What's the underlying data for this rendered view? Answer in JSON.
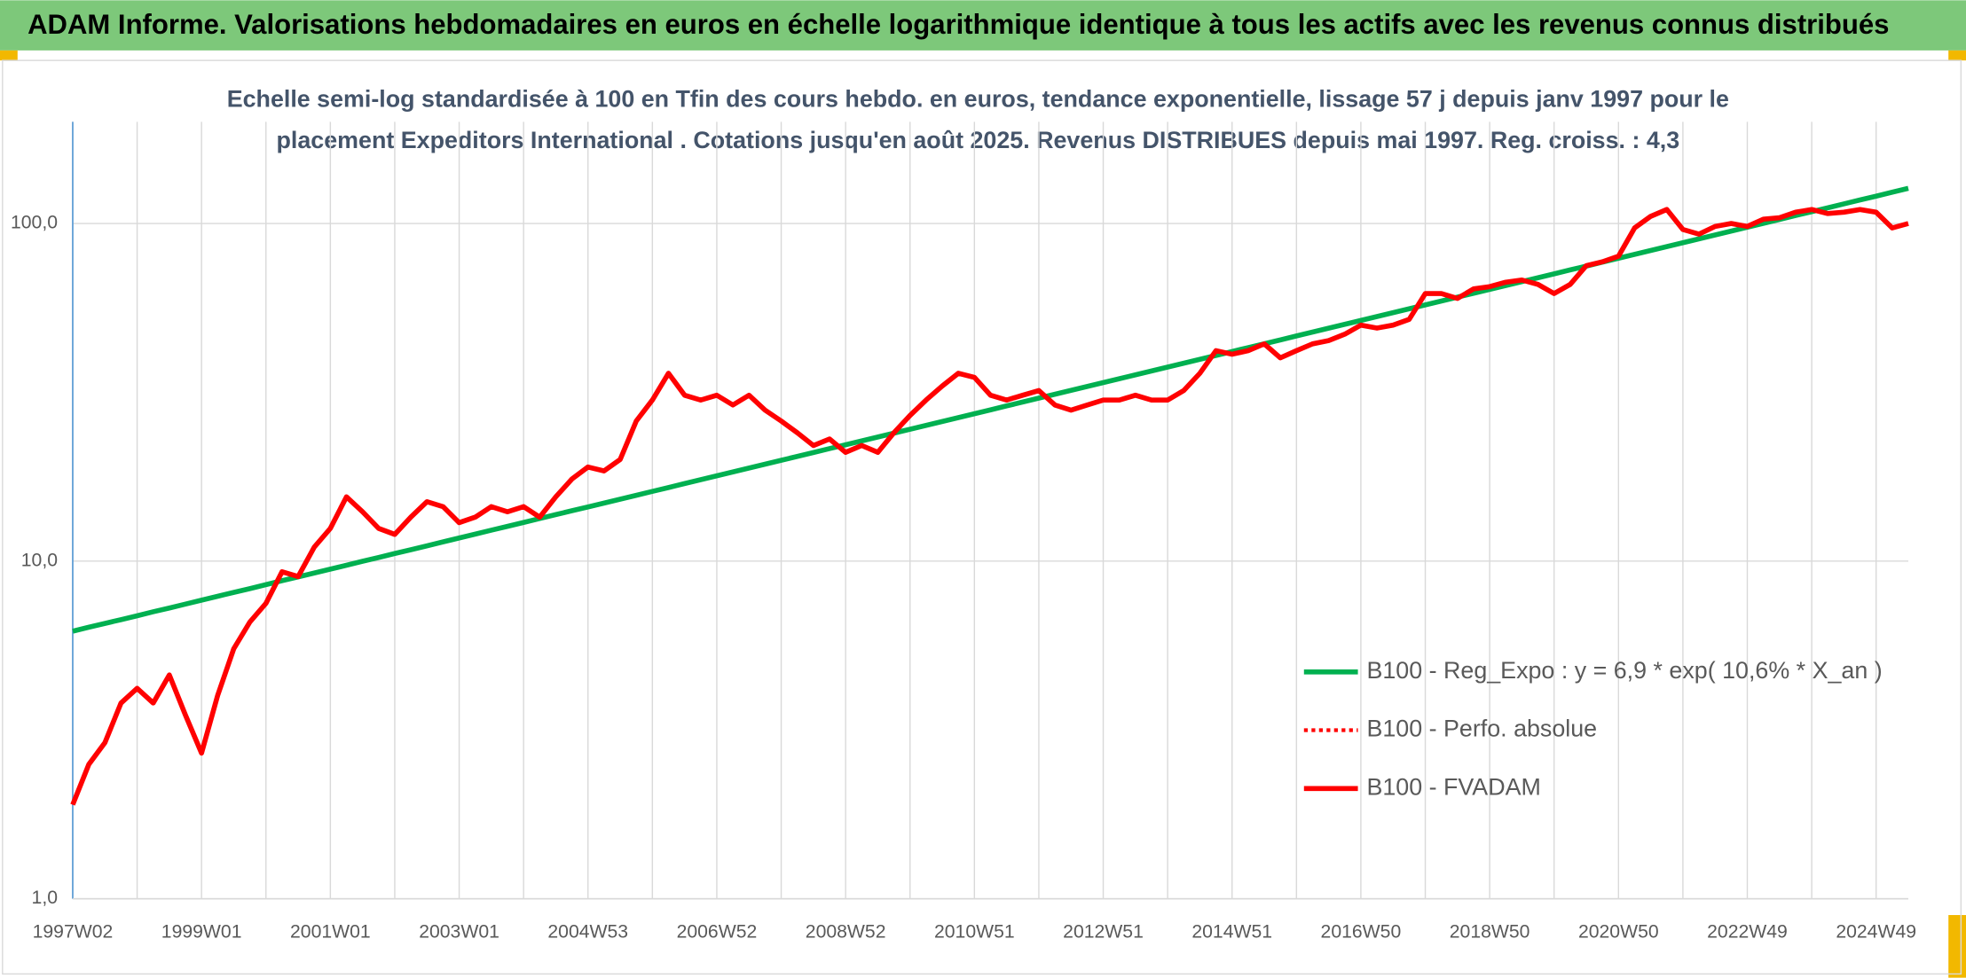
{
  "chart_data": {
    "type": "line",
    "title": "ADAM Informe. Valorisations hebdomadaires en euros en échelle logarithmique identique à tous les actifs avec les revenus connus distribués",
    "subtitle": [
      "Echelle semi-log standardisée à 100 en Tfin des cours hebdo. en euros, tendance exponentielle, lissage 57 j depuis janv 1997 pour le",
      "placement Expeditors International . Cotations jusqu'en août 2025. Revenus DISTRIBUES depuis mai 1997. Reg. croiss. : 4,3"
    ],
    "categories": [
      "1997W02",
      null,
      null,
      null,
      null,
      null,
      null,
      null,
      "1999W01",
      null,
      null,
      null,
      null,
      null,
      null,
      null,
      "2001W01",
      null,
      null,
      null,
      null,
      null,
      null,
      null,
      "2003W01",
      null,
      null,
      null,
      null,
      null,
      null,
      null,
      "2004W53",
      null,
      null,
      null,
      null,
      null,
      null,
      null,
      "2006W52",
      null,
      null,
      null,
      null,
      null,
      null,
      null,
      "2008W52",
      null,
      null,
      null,
      null,
      null,
      null,
      null,
      "2010W51",
      null,
      null,
      null,
      null,
      null,
      null,
      null,
      "2012W51",
      null,
      null,
      null,
      null,
      null,
      null,
      null,
      "2014W51",
      null,
      null,
      null,
      null,
      null,
      null,
      null,
      "2016W50",
      null,
      null,
      null,
      null,
      null,
      null,
      null,
      "2018W50",
      null,
      null,
      null,
      null,
      null,
      null,
      null,
      "2020W50",
      null,
      null,
      null,
      null,
      null,
      null,
      null,
      "2022W49",
      null,
      null,
      null,
      null,
      null,
      null,
      null,
      "2024W49",
      null,
      null
    ],
    "log_scale": true,
    "ylim": [
      1,
      200
    ],
    "yticks": [
      {
        "value": 1,
        "label": "1,0"
      },
      {
        "value": 10,
        "label": "10,0"
      },
      {
        "value": 100,
        "label": "100,0"
      }
    ],
    "grid": true,
    "series": [
      {
        "name": "B100 - Reg_Expo : y = 6,9 * exp( 10,6% *  X_an )",
        "color": "#00b050",
        "dash": "solid",
        "values": [
          6.2,
          6.37,
          6.54,
          6.71,
          6.89,
          7.08,
          7.26,
          7.46,
          7.66,
          7.87,
          8.08,
          8.29,
          8.52,
          8.75,
          8.98,
          9.22,
          9.47,
          9.72,
          9.99,
          10.25,
          10.53,
          10.81,
          11.1,
          11.4,
          11.71,
          12.02,
          12.35,
          12.68,
          13.02,
          13.37,
          13.73,
          14.1,
          14.47,
          14.86,
          15.26,
          15.67,
          16.09,
          16.52,
          16.97,
          17.42,
          17.89,
          18.37,
          18.86,
          19.37,
          19.89,
          20.42,
          20.97,
          21.54,
          22.11,
          22.7,
          23.31,
          23.94,
          24.58,
          25.24,
          25.92,
          26.61,
          27.33,
          28.06,
          28.82,
          29.59,
          30.39,
          31.21,
          32.04,
          32.9,
          33.78,
          34.69,
          35.62,
          36.57,
          37.56,
          38.57,
          39.6,
          40.67,
          41.76,
          42.88,
          44.03,
          45.21,
          46.43,
          47.68,
          48.96,
          50.27,
          51.62,
          53.01,
          54.43,
          55.89,
          57.39,
          58.93,
          60.51,
          62.14,
          63.81,
          65.52,
          67.28,
          69.09,
          70.94,
          72.85,
          74.8,
          76.81,
          78.87,
          80.99,
          83.16,
          85.39,
          87.69,
          90.05,
          92.46,
          94.94,
          97.49,
          100.1,
          102.8,
          105.6,
          108.4,
          111.3,
          114.3,
          117.4,
          120.5,
          123.8,
          127.1
        ]
      },
      {
        "name": "B100 - Perfo. absolue",
        "color": "#ff0000",
        "dash": "dotted",
        "values": [
          1.9,
          2.5,
          2.9,
          3.8,
          4.2,
          3.8,
          4.6,
          3.5,
          2.7,
          4.0,
          5.5,
          6.6,
          7.5,
          9.3,
          9.0,
          11.0,
          12.5,
          15.5,
          14.0,
          12.5,
          12,
          13.5,
          15,
          14.5,
          13,
          13.5,
          14.5,
          14,
          14.5,
          13.5,
          15.5,
          17.5,
          19,
          18.5,
          20,
          26,
          30,
          36,
          31,
          30,
          31,
          29,
          31,
          28,
          26,
          24,
          22,
          23,
          21,
          22,
          21,
          24,
          27,
          30,
          33,
          36,
          35,
          31,
          30,
          31,
          32,
          29,
          28,
          29,
          30,
          30,
          31,
          30,
          30,
          32,
          36,
          42,
          41,
          42,
          44,
          40,
          42,
          44,
          45,
          47,
          50,
          49,
          50,
          52,
          62,
          62,
          60,
          64,
          65,
          67,
          68,
          66,
          62,
          66,
          75,
          77,
          80,
          97,
          105,
          110,
          96,
          93,
          98,
          100,
          98,
          103,
          104,
          108,
          110,
          107,
          108,
          110,
          108,
          97,
          100
        ]
      },
      {
        "name": "B100 - FVADAM",
        "color": "#ff0000",
        "dash": "solid",
        "values": [
          1.9,
          2.5,
          2.9,
          3.8,
          4.2,
          3.8,
          4.6,
          3.5,
          2.7,
          4.0,
          5.5,
          6.6,
          7.5,
          9.3,
          9.0,
          11.0,
          12.5,
          15.5,
          14.0,
          12.5,
          12,
          13.5,
          15,
          14.5,
          13,
          13.5,
          14.5,
          14,
          14.5,
          13.5,
          15.5,
          17.5,
          19,
          18.5,
          20,
          26,
          30,
          36,
          31,
          30,
          31,
          29,
          31,
          28,
          26,
          24,
          22,
          23,
          21,
          22,
          21,
          24,
          27,
          30,
          33,
          36,
          35,
          31,
          30,
          31,
          32,
          29,
          28,
          29,
          30,
          30,
          31,
          30,
          30,
          32,
          36,
          42,
          41,
          42,
          44,
          40,
          42,
          44,
          45,
          47,
          50,
          49,
          50,
          52,
          62,
          62,
          60,
          64,
          65,
          67,
          68,
          66,
          62,
          66,
          75,
          77,
          80,
          97,
          105,
          110,
          96,
          93,
          98,
          100,
          98,
          103,
          104,
          108,
          110,
          107,
          108,
          110,
          108,
          97,
          100
        ]
      }
    ]
  }
}
